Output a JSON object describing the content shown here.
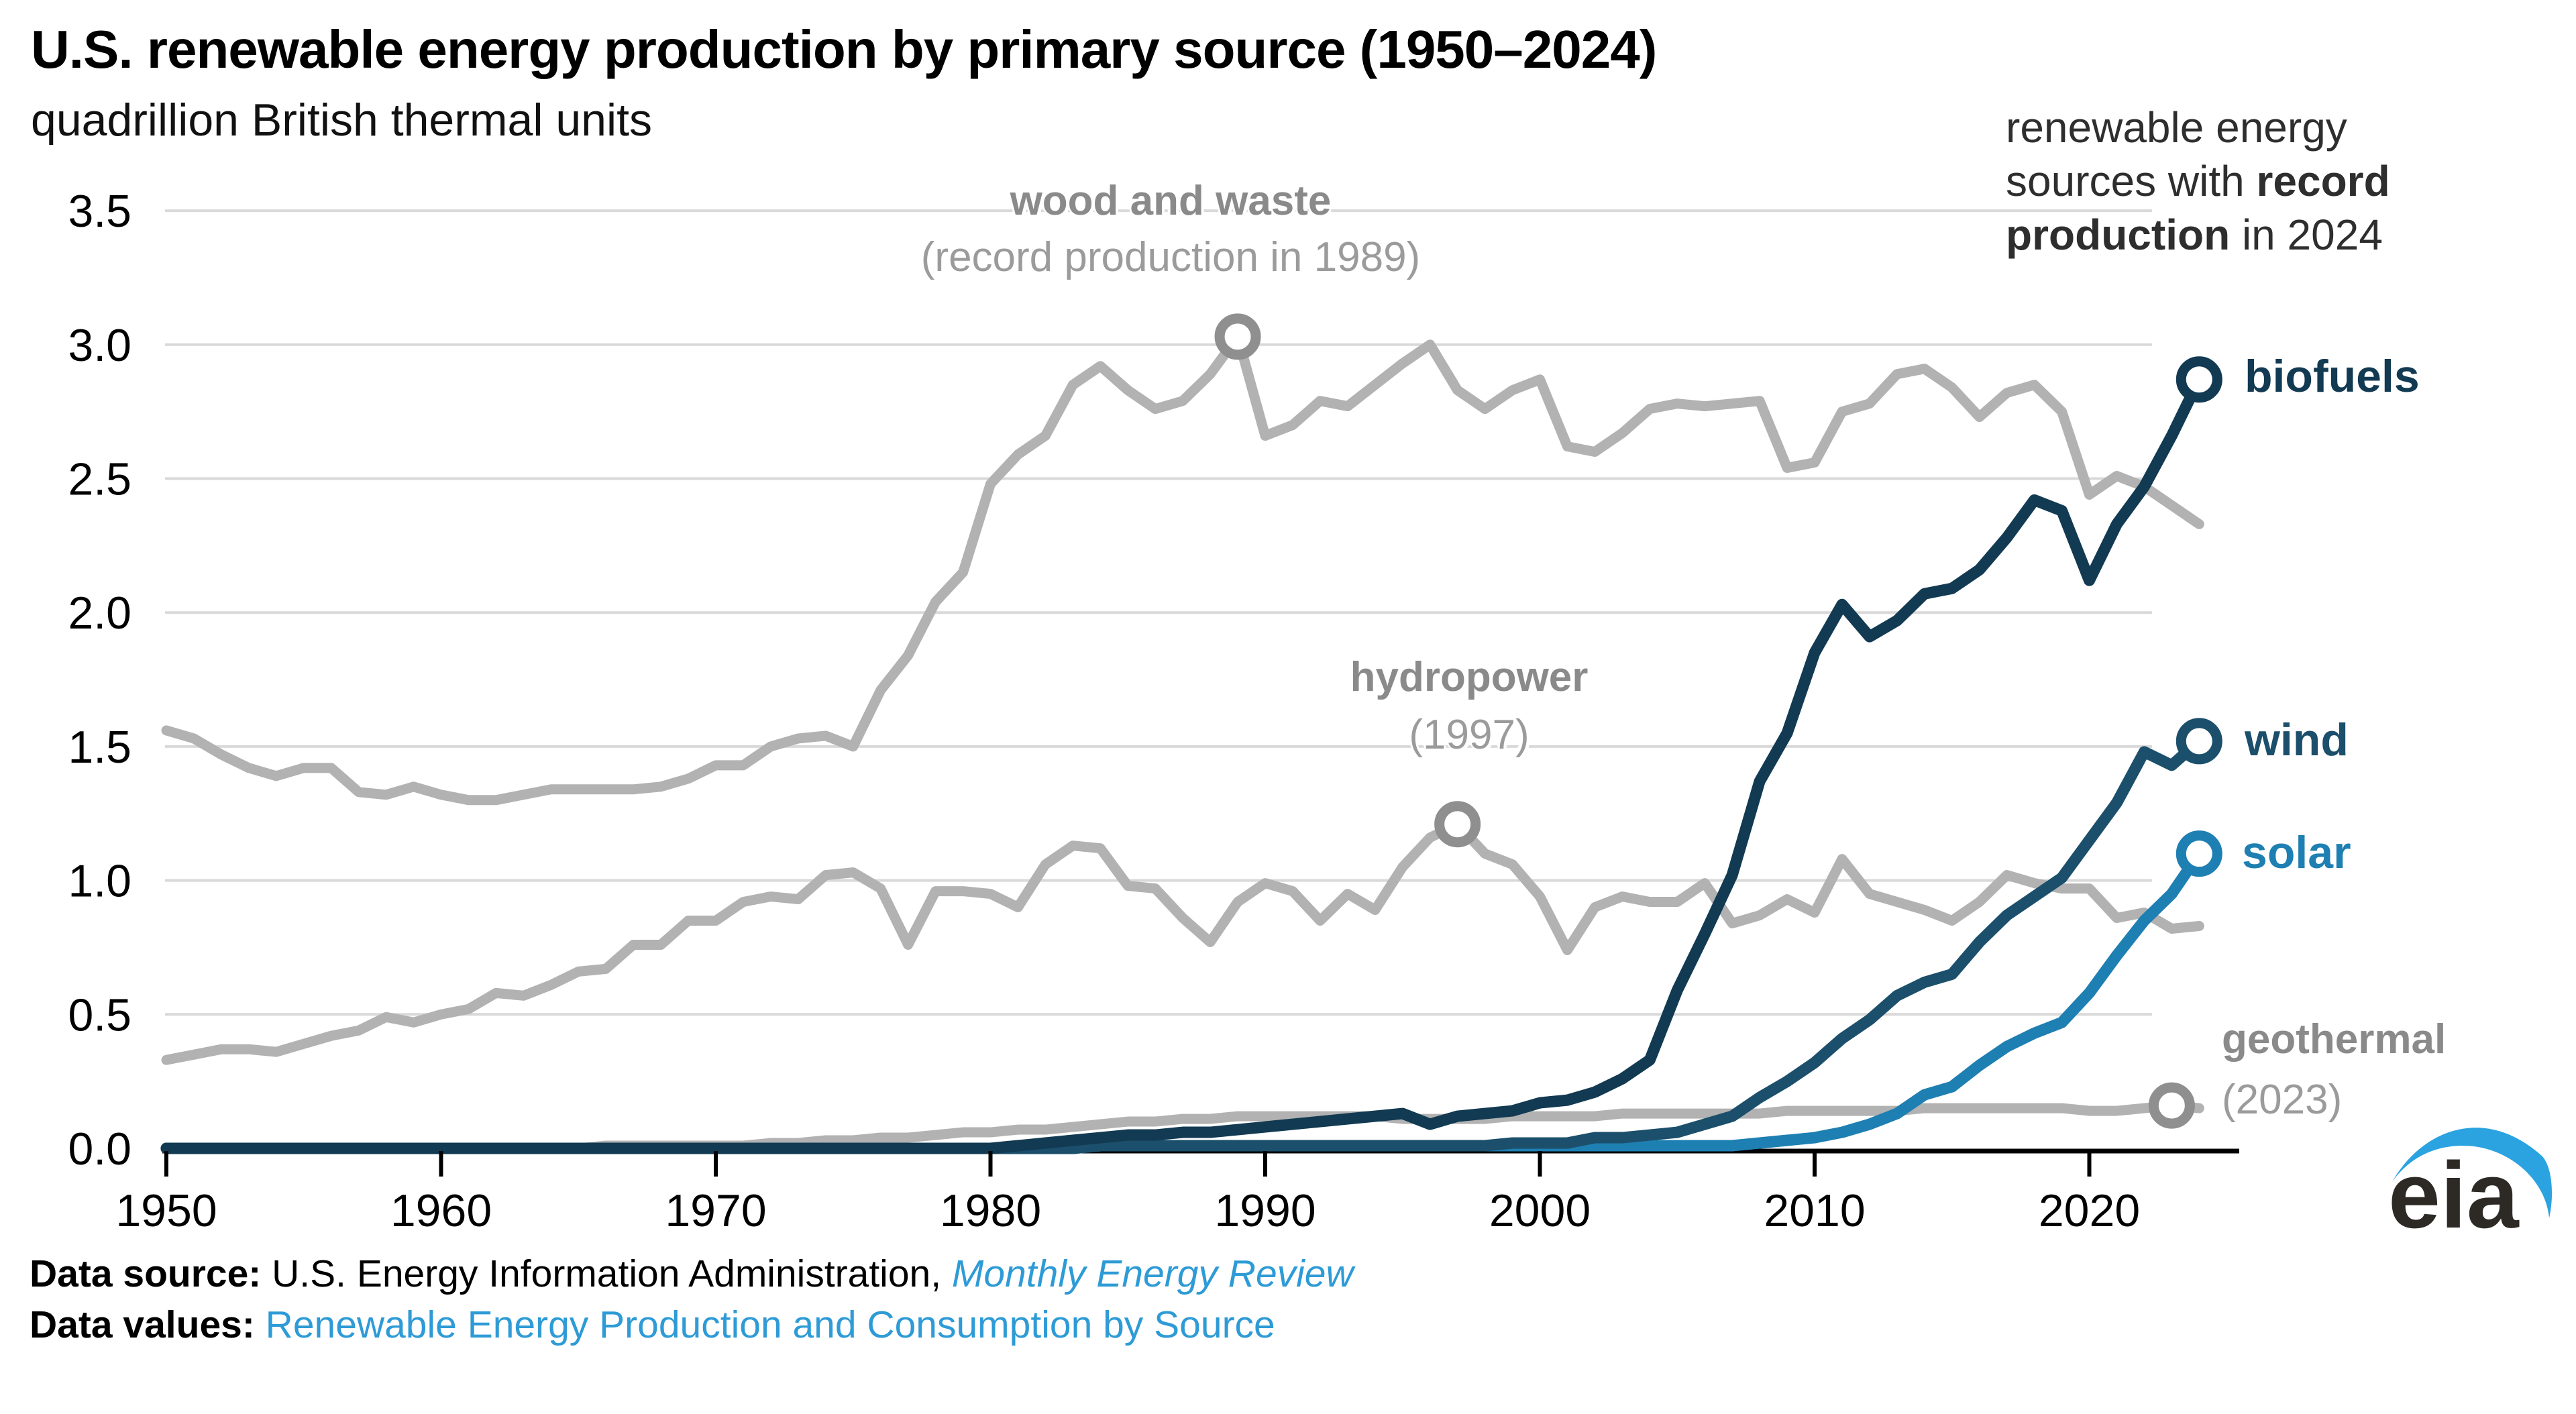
{
  "header": {
    "title": "U.S. renewable energy production by primary source (1950–2024)",
    "subtitle": "quadrillion British thermal units"
  },
  "note": {
    "line1": "renewable energy",
    "line2_normal": "sources with ",
    "line2_bold": "record",
    "line3_bold": "production",
    "line3_normal": " in 2024"
  },
  "annotations": {
    "wood_label": "wood and waste",
    "wood_sub": "(record production in 1989)",
    "hydro_label": "hydropower",
    "hydro_sub": "(1997)",
    "geo_label": "geothermal",
    "geo_sub": "(2023)"
  },
  "series_labels": {
    "biofuels": "biofuels",
    "wind": "wind",
    "solar": "solar"
  },
  "footer": {
    "source_label": "Data source:",
    "source_text": " U.S. Energy Information Administration, ",
    "source_link": "Monthly Energy Review",
    "values_label": "Data values:",
    "values_link": "Renewable Energy Production and Consumption by Source"
  },
  "logo": {
    "text": "eia"
  },
  "colors": {
    "biofuels": "#123a52",
    "wind": "#1b4f6b",
    "solar": "#1e7fb2",
    "gray_series": "#b2b2b2",
    "gray_marker": "#8f8f8f",
    "gridline": "#d9d9d9",
    "axis": "#000000",
    "link_blue": "#2e9bd6",
    "logo_swoosh": "#2aa3e0"
  },
  "chart_data": {
    "type": "line",
    "title": "U.S. renewable energy production by primary source (1950–2024)",
    "ylabel": "quadrillion British thermal units",
    "xlabel": "year",
    "xlim": [
      1950,
      2024
    ],
    "ylim": [
      0,
      3.5
    ],
    "grid": "horizontal",
    "legend_position": "annotated-inline",
    "x_ticks": [
      "1950",
      "1960",
      "1970",
      "1980",
      "1990",
      "2000",
      "2010",
      "2020"
    ],
    "y_ticks": [
      "0.0",
      "0.5",
      "1.0",
      "1.5",
      "2.0",
      "2.5",
      "3.0",
      "3.5"
    ],
    "years": [
      1950,
      1951,
      1952,
      1953,
      1954,
      1955,
      1956,
      1957,
      1958,
      1959,
      1960,
      1961,
      1962,
      1963,
      1964,
      1965,
      1966,
      1967,
      1968,
      1969,
      1970,
      1971,
      1972,
      1973,
      1974,
      1975,
      1976,
      1977,
      1978,
      1979,
      1980,
      1981,
      1982,
      1983,
      1984,
      1985,
      1986,
      1987,
      1988,
      1989,
      1990,
      1991,
      1992,
      1993,
      1994,
      1995,
      1996,
      1997,
      1998,
      1999,
      2000,
      2001,
      2002,
      2003,
      2004,
      2005,
      2006,
      2007,
      2008,
      2009,
      2010,
      2011,
      2012,
      2013,
      2014,
      2015,
      2016,
      2017,
      2018,
      2019,
      2020,
      2021,
      2022,
      2023,
      2024
    ],
    "series": [
      {
        "name": "wood and waste",
        "color": "#b2b2b2",
        "width": 15,
        "values": [
          1.56,
          1.53,
          1.47,
          1.42,
          1.39,
          1.42,
          1.42,
          1.33,
          1.32,
          1.35,
          1.32,
          1.3,
          1.3,
          1.32,
          1.34,
          1.34,
          1.34,
          1.34,
          1.35,
          1.38,
          1.43,
          1.43,
          1.5,
          1.53,
          1.54,
          1.5,
          1.71,
          1.84,
          2.04,
          2.15,
          2.48,
          2.59,
          2.66,
          2.85,
          2.92,
          2.83,
          2.76,
          2.79,
          2.89,
          3.03,
          2.66,
          2.7,
          2.79,
          2.77,
          2.85,
          2.93,
          3.0,
          2.83,
          2.76,
          2.83,
          2.87,
          2.62,
          2.6,
          2.67,
          2.76,
          2.78,
          2.77,
          2.78,
          2.79,
          2.54,
          2.56,
          2.75,
          2.78,
          2.89,
          2.91,
          2.84,
          2.73,
          2.82,
          2.85,
          2.75,
          2.44,
          2.51,
          2.47,
          2.4,
          2.33
        ]
      },
      {
        "name": "hydropower",
        "color": "#b2b2b2",
        "width": 15,
        "values": [
          0.33,
          0.35,
          0.37,
          0.37,
          0.36,
          0.39,
          0.42,
          0.44,
          0.49,
          0.47,
          0.5,
          0.52,
          0.58,
          0.57,
          0.61,
          0.66,
          0.67,
          0.76,
          0.76,
          0.85,
          0.85,
          0.92,
          0.94,
          0.93,
          1.02,
          1.03,
          0.97,
          0.76,
          0.96,
          0.96,
          0.95,
          0.9,
          1.06,
          1.13,
          1.12,
          0.98,
          0.97,
          0.86,
          0.77,
          0.92,
          0.99,
          0.96,
          0.85,
          0.95,
          0.89,
          1.05,
          1.16,
          1.21,
          1.1,
          1.06,
          0.94,
          0.74,
          0.9,
          0.94,
          0.92,
          0.92,
          0.99,
          0.84,
          0.87,
          0.93,
          0.88,
          1.08,
          0.95,
          0.92,
          0.89,
          0.85,
          0.92,
          1.02,
          0.99,
          0.97,
          0.97,
          0.86,
          0.88,
          0.82,
          0.83
        ]
      },
      {
        "name": "geothermal",
        "color": "#b2b2b2",
        "width": 15,
        "values": [
          0,
          0,
          0,
          0,
          0,
          0,
          0,
          0,
          0,
          0,
          0,
          0,
          0,
          0,
          0,
          0,
          0.01,
          0.01,
          0.01,
          0.01,
          0.01,
          0.01,
          0.02,
          0.02,
          0.03,
          0.03,
          0.04,
          0.04,
          0.05,
          0.06,
          0.06,
          0.07,
          0.07,
          0.08,
          0.09,
          0.1,
          0.1,
          0.11,
          0.11,
          0.12,
          0.12,
          0.12,
          0.12,
          0.12,
          0.12,
          0.11,
          0.11,
          0.11,
          0.11,
          0.12,
          0.12,
          0.12,
          0.12,
          0.13,
          0.13,
          0.13,
          0.13,
          0.13,
          0.13,
          0.14,
          0.14,
          0.14,
          0.14,
          0.14,
          0.15,
          0.15,
          0.15,
          0.15,
          0.15,
          0.15,
          0.14,
          0.14,
          0.15,
          0.16,
          0.15
        ]
      },
      {
        "name": "solar",
        "color": "#1e7fb2",
        "width": 17,
        "values": [
          0,
          0,
          0,
          0,
          0,
          0,
          0,
          0,
          0,
          0,
          0,
          0,
          0,
          0,
          0,
          0,
          0,
          0,
          0,
          0,
          0,
          0,
          0,
          0,
          0,
          0,
          0,
          0,
          0,
          0,
          0,
          0,
          0,
          0,
          0.01,
          0.01,
          0.01,
          0.01,
          0.01,
          0.01,
          0.01,
          0.01,
          0.01,
          0.01,
          0.01,
          0.01,
          0.01,
          0.01,
          0.01,
          0.01,
          0.01,
          0.01,
          0.01,
          0.01,
          0.01,
          0.01,
          0.01,
          0.01,
          0.02,
          0.03,
          0.04,
          0.06,
          0.09,
          0.13,
          0.2,
          0.23,
          0.31,
          0.38,
          0.43,
          0.47,
          0.58,
          0.72,
          0.85,
          0.95,
          1.1
        ]
      },
      {
        "name": "wind",
        "color": "#1b4f6b",
        "width": 17,
        "values": [
          0,
          0,
          0,
          0,
          0,
          0,
          0,
          0,
          0,
          0,
          0,
          0,
          0,
          0,
          0,
          0,
          0,
          0,
          0,
          0,
          0,
          0,
          0,
          0,
          0,
          0,
          0,
          0,
          0,
          0,
          0,
          0,
          0,
          0,
          0.01,
          0.01,
          0.01,
          0.01,
          0.01,
          0.01,
          0.01,
          0.01,
          0.01,
          0.01,
          0.01,
          0.01,
          0.01,
          0.01,
          0.01,
          0.02,
          0.02,
          0.02,
          0.04,
          0.04,
          0.05,
          0.06,
          0.09,
          0.12,
          0.19,
          0.25,
          0.32,
          0.41,
          0.48,
          0.57,
          0.62,
          0.65,
          0.77,
          0.87,
          0.94,
          1.01,
          1.15,
          1.29,
          1.48,
          1.43,
          1.52
        ]
      },
      {
        "name": "biofuels",
        "color": "#123a52",
        "width": 17,
        "values": [
          0,
          0,
          0,
          0,
          0,
          0,
          0,
          0,
          0,
          0,
          0,
          0,
          0,
          0,
          0,
          0,
          0,
          0,
          0,
          0,
          0,
          0,
          0,
          0,
          0,
          0,
          0,
          0,
          0,
          0,
          0,
          0.01,
          0.02,
          0.03,
          0.04,
          0.05,
          0.05,
          0.06,
          0.06,
          0.07,
          0.08,
          0.09,
          0.1,
          0.11,
          0.12,
          0.13,
          0.09,
          0.12,
          0.13,
          0.14,
          0.17,
          0.18,
          0.21,
          0.26,
          0.33,
          0.59,
          0.8,
          1.02,
          1.37,
          1.55,
          1.85,
          2.03,
          1.91,
          1.97,
          2.07,
          2.09,
          2.16,
          2.28,
          2.42,
          2.38,
          2.12,
          2.33,
          2.47,
          2.66,
          2.87
        ]
      }
    ],
    "markers": [
      {
        "series": "wood and waste",
        "year": 1989,
        "value": 3.03,
        "color": "#8f8f8f"
      },
      {
        "series": "hydropower",
        "year": 1997,
        "value": 1.21,
        "color": "#8f8f8f"
      },
      {
        "series": "geothermal",
        "year": 2023,
        "value": 0.16,
        "color": "#8f8f8f"
      },
      {
        "series": "biofuels",
        "year": 2024,
        "value": 2.87,
        "color": "#123a52"
      },
      {
        "series": "wind",
        "year": 2024,
        "value": 1.52,
        "color": "#1b4f6b"
      },
      {
        "series": "solar",
        "year": 2024,
        "value": 1.1,
        "color": "#1e7fb2"
      }
    ]
  }
}
